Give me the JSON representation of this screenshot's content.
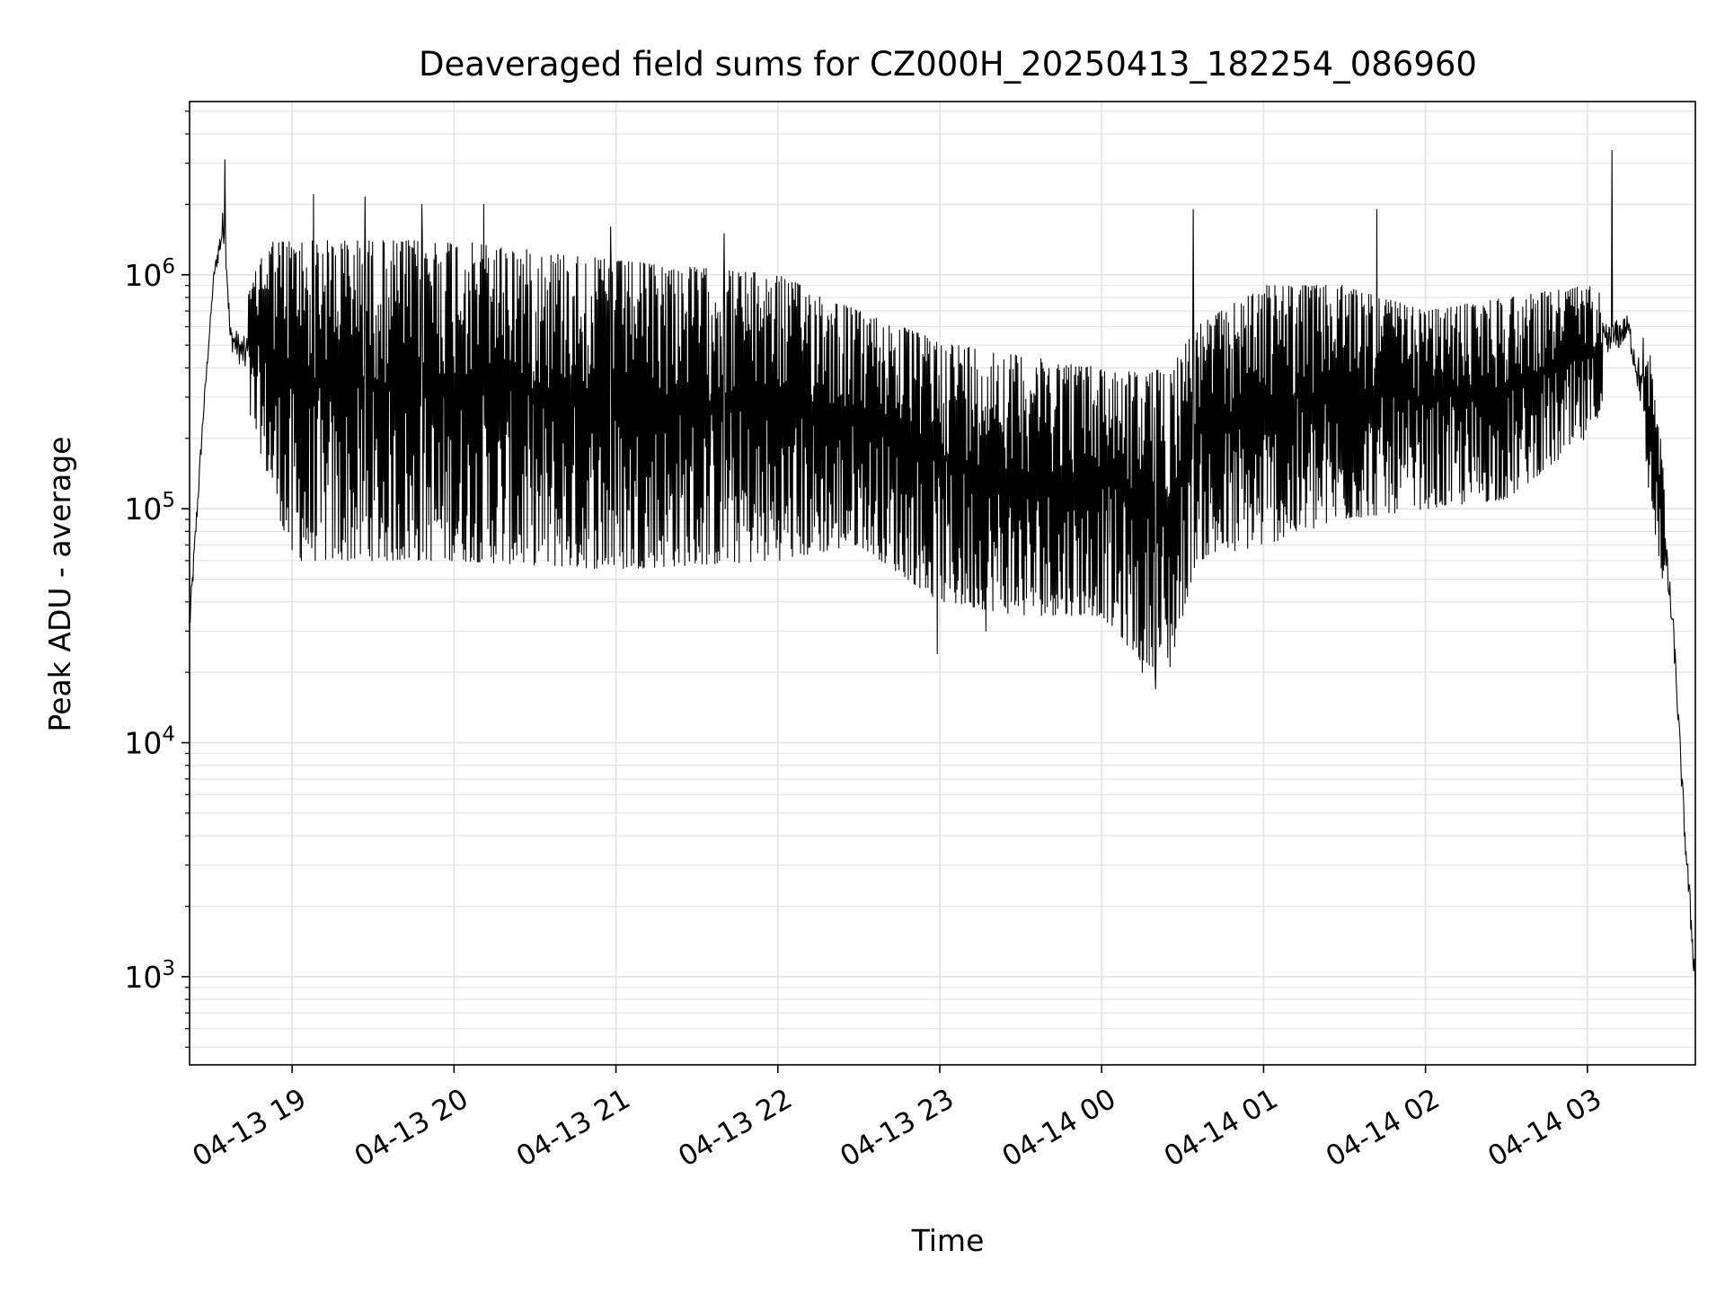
{
  "chart_data": {
    "type": "line",
    "title": "Deaveraged field sums for CZ000H_20250413_182254_086960",
    "xlabel": "Time",
    "ylabel": "Peak ADU - average",
    "yscale": "log",
    "ylim": [
      420,
      5500000
    ],
    "xlim": [
      "2025-04-13 18:22",
      "2025-04-14 03:40"
    ],
    "grid": true,
    "line_color": "#000000",
    "xticks": [
      {
        "t": "2025-04-13 19:00",
        "label": "04-13 19"
      },
      {
        "t": "2025-04-13 20:00",
        "label": "04-13 20"
      },
      {
        "t": "2025-04-13 21:00",
        "label": "04-13 21"
      },
      {
        "t": "2025-04-13 22:00",
        "label": "04-13 22"
      },
      {
        "t": "2025-04-13 23:00",
        "label": "04-13 23"
      },
      {
        "t": "2025-04-14 00:00",
        "label": "04-14 00"
      },
      {
        "t": "2025-04-14 01:00",
        "label": "04-14 01"
      },
      {
        "t": "2025-04-14 02:00",
        "label": "04-14 02"
      },
      {
        "t": "2025-04-14 03:00",
        "label": "04-14 03"
      }
    ],
    "yticks": [
      {
        "value": 1000,
        "base": "10",
        "exp": "3"
      },
      {
        "value": 10000,
        "base": "10",
        "exp": "4"
      },
      {
        "value": 100000,
        "base": "10",
        "exp": "5"
      },
      {
        "value": 1000000,
        "base": "10",
        "exp": "6"
      }
    ],
    "series": [
      {
        "mode": "oscillating",
        "envelope": [
          {
            "t": "2025-04-13 18:22",
            "low": 22000,
            "high": 45000
          },
          {
            "t": "2025-04-13 18:27",
            "low": 200000,
            "high": 300000
          },
          {
            "t": "2025-04-13 18:31",
            "low": 900000,
            "high": 1100000
          },
          {
            "t": "2025-04-13 18:35",
            "low": 1000000,
            "high": 3000000
          },
          {
            "t": "2025-04-13 18:37",
            "low": 400000,
            "high": 750000
          },
          {
            "t": "2025-04-13 18:42",
            "low": 300000,
            "high": 700000
          },
          {
            "t": "2025-04-13 18:50",
            "low": 150000,
            "high": 1400000
          },
          {
            "t": "2025-04-13 19:00",
            "low": 60000,
            "high": 1400000
          },
          {
            "t": "2025-04-13 20:00",
            "low": 60000,
            "high": 1400000
          },
          {
            "t": "2025-04-13 21:00",
            "low": 55000,
            "high": 1150000
          },
          {
            "t": "2025-04-13 22:00",
            "low": 60000,
            "high": 1000000
          },
          {
            "t": "2025-04-13 22:30",
            "low": 70000,
            "high": 700000
          },
          {
            "t": "2025-04-13 23:00",
            "low": 40000,
            "high": 520000
          },
          {
            "t": "2025-04-13 23:30",
            "low": 35000,
            "high": 450000
          },
          {
            "t": "2025-04-14 00:00",
            "low": 35000,
            "high": 400000
          },
          {
            "t": "2025-04-14 00:15",
            "low": 22000,
            "high": 380000
          },
          {
            "t": "2025-04-14 00:25",
            "low": 20000,
            "high": 400000
          },
          {
            "t": "2025-04-14 00:35",
            "low": 60000,
            "high": 600000
          },
          {
            "t": "2025-04-14 01:00",
            "low": 70000,
            "high": 900000
          },
          {
            "t": "2025-04-14 01:30",
            "low": 90000,
            "high": 900000
          },
          {
            "t": "2025-04-14 02:00",
            "low": 100000,
            "high": 700000
          },
          {
            "t": "2025-04-14 02:30",
            "low": 110000,
            "high": 800000
          },
          {
            "t": "2025-04-14 03:00",
            "low": 200000,
            "high": 900000
          },
          {
            "t": "2025-04-14 03:15",
            "low": 450000,
            "high": 800000
          },
          {
            "t": "2025-04-14 03:25",
            "low": 80000,
            "high": 400000
          },
          {
            "t": "2025-04-14 03:32",
            "low": 20000,
            "high": 40000
          },
          {
            "t": "2025-04-14 03:36",
            "low": 3000,
            "high": 6000
          },
          {
            "t": "2025-04-14 03:40",
            "low": 600,
            "high": 1500
          }
        ],
        "spikes": [
          {
            "t": "2025-04-13 18:35",
            "value": 3100000
          },
          {
            "t": "2025-04-13 19:08",
            "value": 2200000
          },
          {
            "t": "2025-04-13 19:27",
            "value": 2150000
          },
          {
            "t": "2025-04-13 19:48",
            "value": 2000000
          },
          {
            "t": "2025-04-13 20:11",
            "value": 2000000
          },
          {
            "t": "2025-04-13 20:58",
            "value": 1600000
          },
          {
            "t": "2025-04-13 21:40",
            "value": 1500000
          },
          {
            "t": "2025-04-14 00:34",
            "value": 1900000
          },
          {
            "t": "2025-04-14 01:42",
            "value": 1900000
          },
          {
            "t": "2025-04-14 03:09",
            "value": 3400000
          },
          {
            "t": "2025-04-14 00:20",
            "value": 17000
          },
          {
            "t": "2025-04-14 00:15",
            "value": 20000
          },
          {
            "t": "2025-04-13 22:59",
            "value": 24000
          },
          {
            "t": "2025-04-13 23:17",
            "value": 30000
          }
        ]
      }
    ]
  }
}
